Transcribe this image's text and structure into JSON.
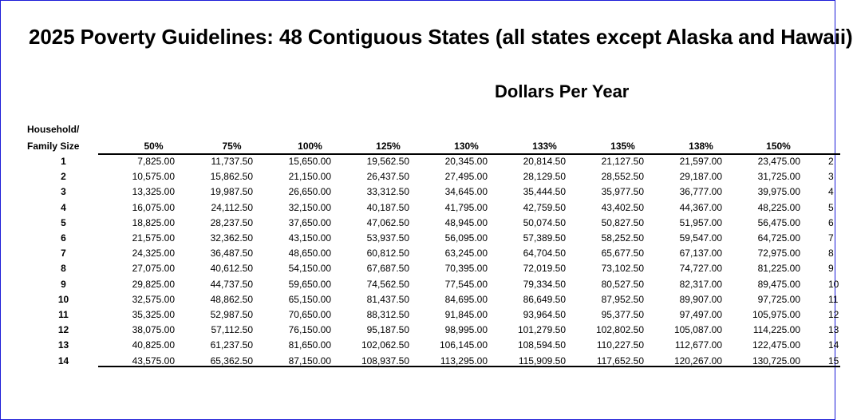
{
  "title": "2025 Poverty Guidelines: 48 Contiguous States (all states except Alaska and Hawaii)",
  "subtitle": "Dollars Per Year",
  "row_header": {
    "line1": "Household/",
    "line2": "Family Size"
  },
  "columns": [
    "50%",
    "75%",
    "100%",
    "125%",
    "130%",
    "133%",
    "135%",
    "138%",
    "150%"
  ],
  "rows": [
    {
      "size": "1",
      "values": [
        "7,825.00",
        "11,737.50",
        "15,650.00",
        "19,562.50",
        "20,345.00",
        "20,814.50",
        "21,127.50",
        "21,597.00",
        "23,475.00"
      ],
      "clipped": "2"
    },
    {
      "size": "2",
      "values": [
        "10,575.00",
        "15,862.50",
        "21,150.00",
        "26,437.50",
        "27,495.00",
        "28,129.50",
        "28,552.50",
        "29,187.00",
        "31,725.00"
      ],
      "clipped": "3"
    },
    {
      "size": "3",
      "values": [
        "13,325.00",
        "19,987.50",
        "26,650.00",
        "33,312.50",
        "34,645.00",
        "35,444.50",
        "35,977.50",
        "36,777.00",
        "39,975.00"
      ],
      "clipped": "4"
    },
    {
      "size": "4",
      "values": [
        "16,075.00",
        "24,112.50",
        "32,150.00",
        "40,187.50",
        "41,795.00",
        "42,759.50",
        "43,402.50",
        "44,367.00",
        "48,225.00"
      ],
      "clipped": "5"
    },
    {
      "size": "5",
      "values": [
        "18,825.00",
        "28,237.50",
        "37,650.00",
        "47,062.50",
        "48,945.00",
        "50,074.50",
        "50,827.50",
        "51,957.00",
        "56,475.00"
      ],
      "clipped": "6"
    },
    {
      "size": "6",
      "values": [
        "21,575.00",
        "32,362.50",
        "43,150.00",
        "53,937.50",
        "56,095.00",
        "57,389.50",
        "58,252.50",
        "59,547.00",
        "64,725.00"
      ],
      "clipped": "7"
    },
    {
      "size": "7",
      "values": [
        "24,325.00",
        "36,487.50",
        "48,650.00",
        "60,812.50",
        "63,245.00",
        "64,704.50",
        "65,677.50",
        "67,137.00",
        "72,975.00"
      ],
      "clipped": "8"
    },
    {
      "size": "8",
      "values": [
        "27,075.00",
        "40,612.50",
        "54,150.00",
        "67,687.50",
        "70,395.00",
        "72,019.50",
        "73,102.50",
        "74,727.00",
        "81,225.00"
      ],
      "clipped": "9"
    },
    {
      "size": "9",
      "values": [
        "29,825.00",
        "44,737.50",
        "59,650.00",
        "74,562.50",
        "77,545.00",
        "79,334.50",
        "80,527.50",
        "82,317.00",
        "89,475.00"
      ],
      "clipped": "10"
    },
    {
      "size": "10",
      "values": [
        "32,575.00",
        "48,862.50",
        "65,150.00",
        "81,437.50",
        "84,695.00",
        "86,649.50",
        "87,952.50",
        "89,907.00",
        "97,725.00"
      ],
      "clipped": "11"
    },
    {
      "size": "11",
      "values": [
        "35,325.00",
        "52,987.50",
        "70,650.00",
        "88,312.50",
        "91,845.00",
        "93,964.50",
        "95,377.50",
        "97,497.00",
        "105,975.00"
      ],
      "clipped": "12"
    },
    {
      "size": "12",
      "values": [
        "38,075.00",
        "57,112.50",
        "76,150.00",
        "95,187.50",
        "98,995.00",
        "101,279.50",
        "102,802.50",
        "105,087.00",
        "114,225.00"
      ],
      "clipped": "13"
    },
    {
      "size": "13",
      "values": [
        "40,825.00",
        "61,237.50",
        "81,650.00",
        "102,062.50",
        "106,145.00",
        "108,594.50",
        "110,227.50",
        "112,677.00",
        "122,475.00"
      ],
      "clipped": "14"
    },
    {
      "size": "14",
      "values": [
        "43,575.00",
        "65,362.50",
        "87,150.00",
        "108,937.50",
        "113,295.00",
        "115,909.50",
        "117,652.50",
        "120,267.00",
        "130,725.00"
      ],
      "clipped": "15"
    }
  ]
}
